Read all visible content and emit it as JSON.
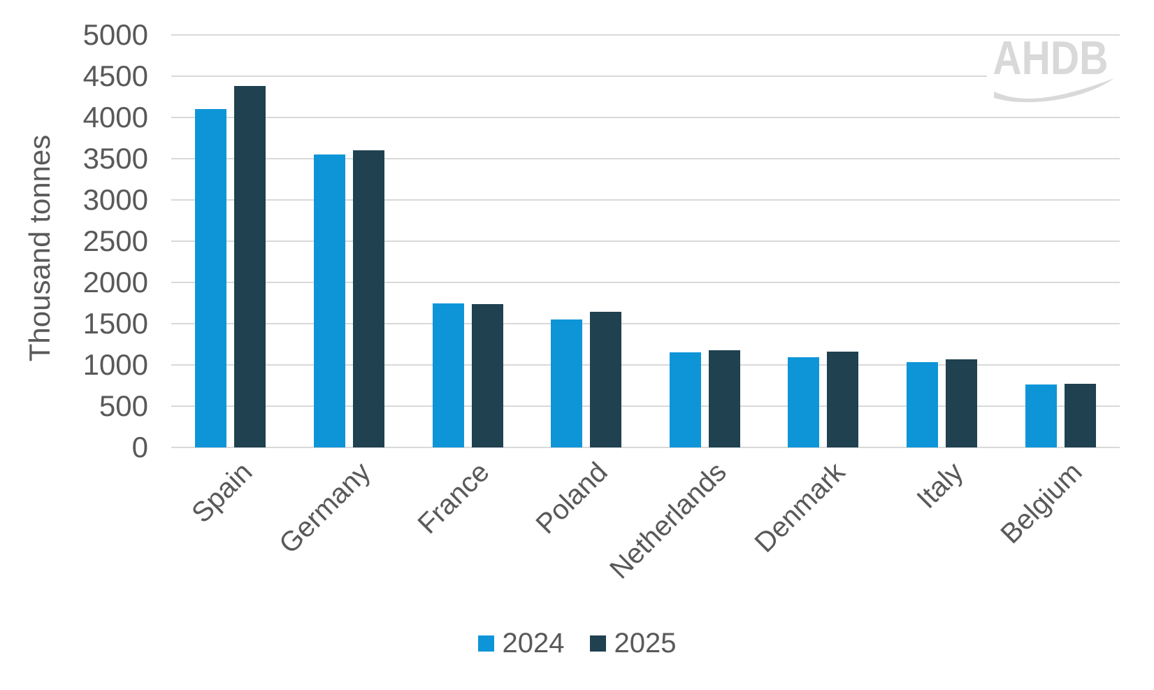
{
  "chart_data": {
    "type": "bar",
    "title": "",
    "xlabel": "",
    "ylabel": "Thousand tonnes",
    "categories": [
      "Spain",
      "Germany",
      "France",
      "Poland",
      "Netherlands",
      "Denmark",
      "Italy",
      "Belgium"
    ],
    "series": [
      {
        "name": "2024",
        "color": "#0e95d8",
        "values": [
          4100,
          3550,
          1750,
          1550,
          1155,
          1095,
          1030,
          765
        ]
      },
      {
        "name": "2025",
        "color": "#1f4150",
        "values": [
          4380,
          3600,
          1740,
          1640,
          1175,
          1165,
          1070,
          775
        ]
      }
    ],
    "ylim": [
      0,
      5000
    ],
    "yticks": [
      0,
      500,
      1000,
      1500,
      2000,
      2500,
      3000,
      3500,
      4000,
      4500,
      5000
    ],
    "grid": true,
    "legend_position": "bottom"
  },
  "watermark": {
    "text": "AHDB"
  },
  "colors": {
    "axis_text": "#595959",
    "gridline": "#d9d9d9",
    "watermark": "#d9d9d9",
    "background": "#ffffff",
    "series_2024": "#0e95d8",
    "series_2025": "#1f4150"
  }
}
